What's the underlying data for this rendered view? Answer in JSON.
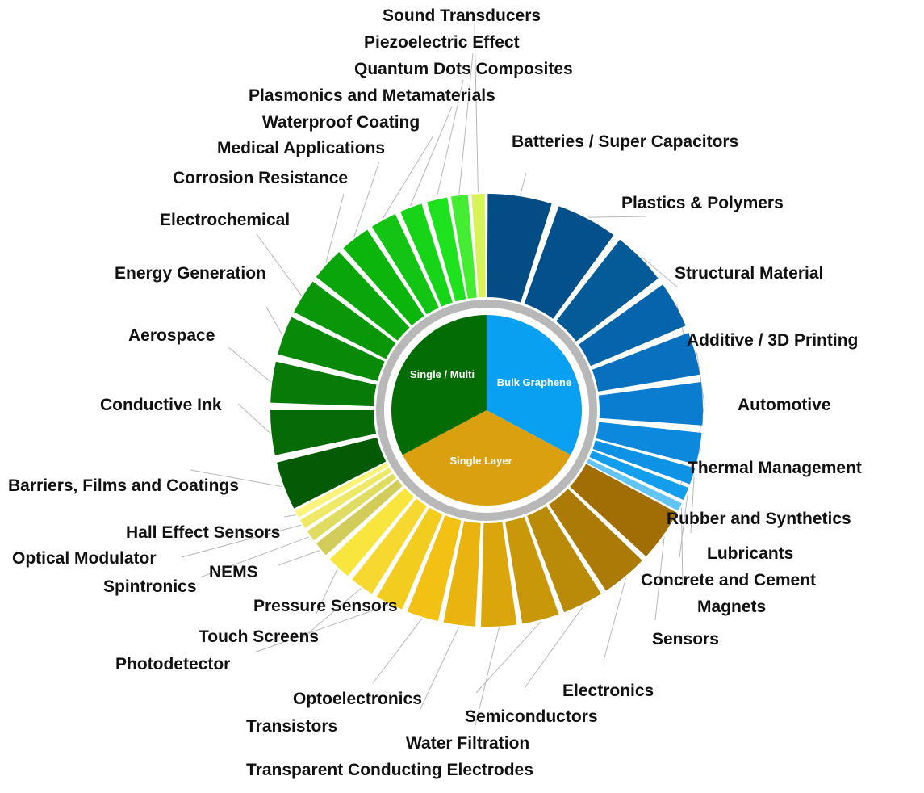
{
  "chart_data": {
    "type": "sunburst",
    "inner": [
      {
        "name": "Bulk Graphene",
        "start": 0,
        "end": 118,
        "color": "#0aa0f2"
      },
      {
        "name": "Single Layer",
        "start": 118,
        "end": 242,
        "color": "#dba010"
      },
      {
        "name": "Single / Multi",
        "start": 242,
        "end": 360,
        "color": "#046c04"
      }
    ],
    "outer": [
      {
        "label": "Batteries / Super Capacitors",
        "group": "Bulk Graphene",
        "start": 0.3,
        "end": 17.5,
        "color": "#044c84"
      },
      {
        "label": "Plastics & Polymers",
        "group": "Bulk Graphene",
        "start": 19.5,
        "end": 36.0,
        "color": "#04508c"
      },
      {
        "label": "Structural Material",
        "group": "Bulk Graphene",
        "start": 38.0,
        "end": 52.5,
        "color": "#055a98"
      },
      {
        "label": "Additive / 3D Printing",
        "group": "Bulk Graphene",
        "start": 54.5,
        "end": 67.0,
        "color": "#0664ac"
      },
      {
        "label": "Automotive",
        "group": "Bulk Graphene",
        "start": 69.0,
        "end": 80.5,
        "color": "#0870be"
      },
      {
        "label": "Thermal Management",
        "group": "Bulk Graphene",
        "start": 82.5,
        "end": 94.0,
        "color": "#0b7dd0"
      },
      {
        "label": "Rubber and Synthetics",
        "group": "Bulk Graphene",
        "start": 96.0,
        "end": 104.5,
        "color": "#0c88dc"
      },
      {
        "label": "Lubricants",
        "group": "Bulk Graphene",
        "start": 105.5,
        "end": 110.0,
        "color": "#0d92e6"
      },
      {
        "label": "Concrete and Cement",
        "group": "Bulk Graphene",
        "start": 111.0,
        "end": 114.5,
        "color": "#139ded"
      },
      {
        "label": "Magnets",
        "group": "Bulk Graphene",
        "start": 115.5,
        "end": 117.7,
        "color": "#62c4f4"
      },
      {
        "label": "Sensors",
        "group": "Single Layer",
        "start": 118.3,
        "end": 132.5,
        "color": "#a16e06"
      },
      {
        "label": "Electronics",
        "group": "Single Layer",
        "start": 134.0,
        "end": 146.5,
        "color": "#ac7b07"
      },
      {
        "label": "Semiconductors",
        "group": "Single Layer",
        "start": 148.0,
        "end": 159.0,
        "color": "#b98b08"
      },
      {
        "label": "Water Filtration",
        "group": "Single Layer",
        "start": 160.5,
        "end": 170.5,
        "color": "#c8980a"
      },
      {
        "label": "Transparent Conducting Electrodes",
        "group": "Single Layer",
        "start": 172.0,
        "end": 181.5,
        "color": "#dba60b"
      },
      {
        "label": "Transistors",
        "group": "Single Layer",
        "start": 183.0,
        "end": 191.5,
        "color": "#eab410"
      },
      {
        "label": "Optoelectronics",
        "group": "Single Layer",
        "start": 193.0,
        "end": 201.5,
        "color": "#f3c014"
      },
      {
        "label": "Photodetector",
        "group": "Single Layer",
        "start": 203.0,
        "end": 210.5,
        "color": "#f3cc20"
      },
      {
        "label": "Touch Screens",
        "group": "Single Layer",
        "start": 212.0,
        "end": 218.5,
        "color": "#f6d830"
      },
      {
        "label": "Pressure Sensors",
        "group": "Single Layer",
        "start": 220.0,
        "end": 226.5,
        "color": "#f8e63e"
      },
      {
        "label": "NEMS",
        "group": "Single Layer",
        "start": 228.0,
        "end": 232.0,
        "color": "#d2cc5a"
      },
      {
        "label": "Spintronics",
        "group": "Single Layer",
        "start": 233.0,
        "end": 236.0,
        "color": "#e0dc62"
      },
      {
        "label": "Optical Modulator",
        "group": "Single Layer",
        "start": 237.0,
        "end": 239.5,
        "color": "#efe968"
      },
      {
        "label": "Hall Effect Sensors",
        "group": "Single Layer",
        "start": 240.3,
        "end": 242.3,
        "color": "#faf47c"
      },
      {
        "label": "Barriers, Films and Coatings",
        "group": "Single / Multi",
        "start": 243.0,
        "end": 256.0,
        "color": "#055a05"
      },
      {
        "label": "Conductive Ink",
        "group": "Single / Multi",
        "start": 258.0,
        "end": 270.0,
        "color": "#066a06"
      },
      {
        "label": "Aerospace",
        "group": "Single / Multi",
        "start": 272.0,
        "end": 283.0,
        "color": "#077a07"
      },
      {
        "label": "Energy Generation",
        "group": "Single / Multi",
        "start": 285.0,
        "end": 295.5,
        "color": "#088908"
      },
      {
        "label": "Electrochemical",
        "group": "Single / Multi",
        "start": 297.0,
        "end": 306.5,
        "color": "#099709"
      },
      {
        "label": "Corrosion Resistance",
        "group": "Single / Multi",
        "start": 308.0,
        "end": 317.0,
        "color": "#0aa50a"
      },
      {
        "label": "Medical Applications",
        "group": "Single / Multi",
        "start": 318.5,
        "end": 326.5,
        "color": "#0cb50c"
      },
      {
        "label": "Waterproof Coating",
        "group": "Single / Multi",
        "start": 328.0,
        "end": 335.0,
        "color": "#14c414"
      },
      {
        "label": "Plasmonics and Metamaterials",
        "group": "Single / Multi",
        "start": 336.5,
        "end": 342.5,
        "color": "#18d418"
      },
      {
        "label": "Quantum Dots Composites",
        "group": "Single / Multi",
        "start": 344.0,
        "end": 349.5,
        "color": "#1ee21e"
      },
      {
        "label": "Piezoelectric Effect",
        "group": "Single / Multi",
        "start": 350.5,
        "end": 355.0,
        "color": "#44ec32"
      },
      {
        "label": "Sound Transducers",
        "group": "Single / Multi",
        "start": 356.0,
        "end": 359.5,
        "color": "#d8f25a"
      }
    ]
  }
}
